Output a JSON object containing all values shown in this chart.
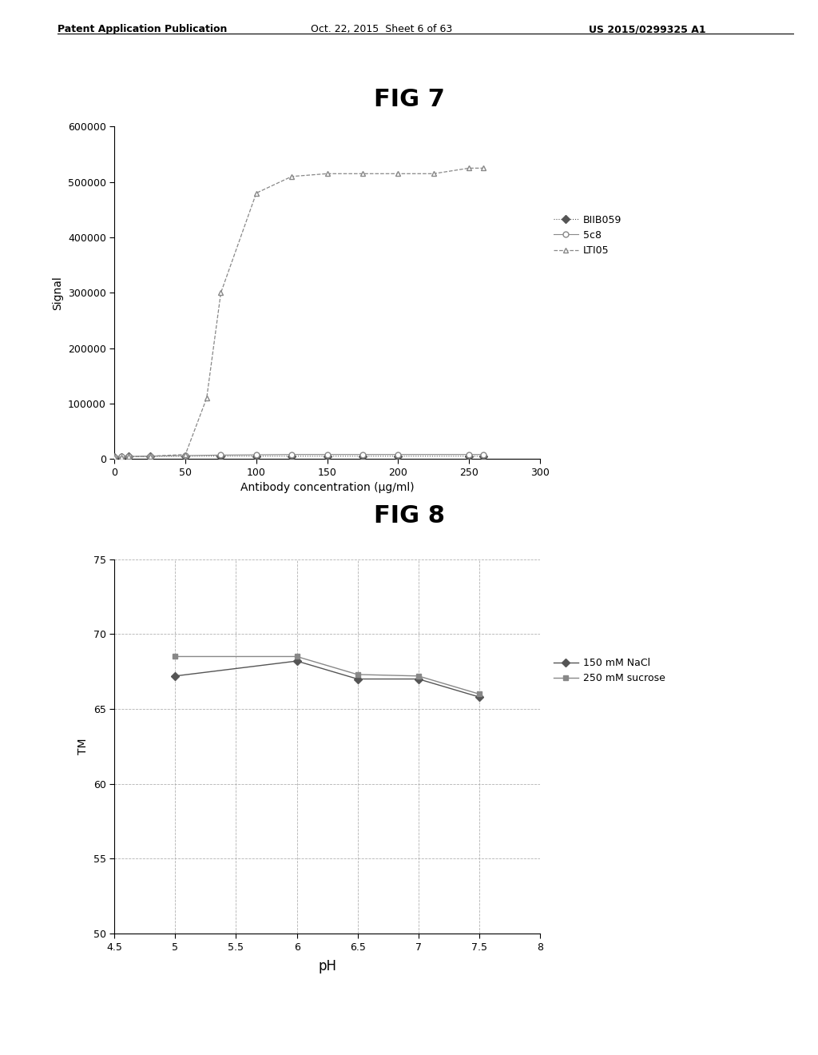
{
  "header_left": "Patent Application Publication",
  "header_center": "Oct. 22, 2015  Sheet 6 of 63",
  "header_right": "US 2015/0299325 A1",
  "fig7_title": "FIG 7",
  "fig7_xlabel": "Antibody concentration (μg/ml)",
  "fig7_ylabel": "Signal",
  "fig7_xlim": [
    0,
    300
  ],
  "fig7_ylim": [
    0,
    600000
  ],
  "fig7_yticks": [
    0,
    100000,
    200000,
    300000,
    400000,
    500000,
    600000
  ],
  "fig7_ytick_labels": [
    "0",
    "100000",
    "200000",
    "300000",
    "400000",
    "500000",
    "600000"
  ],
  "fig7_xticks": [
    0,
    50,
    100,
    150,
    200,
    250,
    300
  ],
  "biib059_x": [
    0,
    5,
    10,
    25,
    50,
    75,
    100,
    125,
    150,
    175,
    200,
    250,
    260
  ],
  "biib059_y": [
    3000,
    3500,
    4000,
    4500,
    5000,
    5000,
    5000,
    5000,
    5000,
    5000,
    5000,
    5000,
    5000
  ],
  "c5c8_x": [
    0,
    5,
    10,
    25,
    50,
    75,
    100,
    125,
    150,
    175,
    200,
    250,
    260
  ],
  "c5c8_y": [
    3500,
    4000,
    4500,
    5000,
    6000,
    7000,
    7500,
    8000,
    8000,
    8000,
    8000,
    8000,
    8000
  ],
  "lti05_x": [
    0,
    5,
    10,
    25,
    50,
    65,
    75,
    100,
    125,
    150,
    175,
    200,
    225,
    250,
    260
  ],
  "lti05_y": [
    3000,
    3500,
    4000,
    5000,
    8000,
    110000,
    300000,
    480000,
    510000,
    515000,
    515000,
    515000,
    515000,
    525000,
    525000
  ],
  "fig7_legend": [
    "BIIB059",
    "5c8",
    "LTI05"
  ],
  "fig8_title": "FIG 8",
  "fig8_xlabel": "pH",
  "fig8_ylabel": "TM",
  "fig8_xlim": [
    4.5,
    8
  ],
  "fig8_ylim": [
    50,
    75
  ],
  "fig8_yticks": [
    50,
    55,
    60,
    65,
    70,
    75
  ],
  "fig8_xticks": [
    4.5,
    5,
    5.5,
    6,
    6.5,
    7,
    7.5,
    8
  ],
  "fig8_xtick_labels": [
    "4.5",
    "5",
    "5.5",
    "6",
    "6.5",
    "7",
    "7.5",
    "8"
  ],
  "nacl_x": [
    5,
    6,
    6.5,
    7,
    7.5
  ],
  "nacl_y": [
    67.2,
    68.2,
    67.0,
    67.0,
    65.8
  ],
  "sucrose_x": [
    5,
    6,
    6.5,
    7,
    7.5
  ],
  "sucrose_y": [
    68.5,
    68.5,
    67.3,
    67.2,
    66.0
  ],
  "fig8_legend": [
    "150 mM NaCl",
    "250 mM sucrose"
  ],
  "bg_color": "#ffffff",
  "gray_dark": "#555555",
  "gray_mid": "#888888",
  "gray_light": "#aaaaaa",
  "header_fontsize": 9,
  "fig_title_fontsize": 22,
  "axis_label_fontsize": 10,
  "tick_fontsize": 9,
  "legend_fontsize": 9
}
